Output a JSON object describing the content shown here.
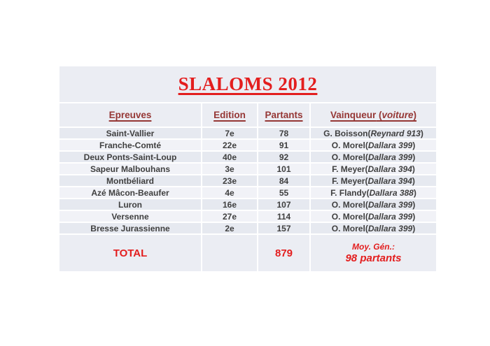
{
  "title": "SLALOMS 2012",
  "punctuation": {
    "open_paren": " (",
    "close_paren": ")"
  },
  "table": {
    "headers": {
      "epreuves": "Epreuves",
      "edition": "Edition",
      "partants": "Partants",
      "vainqueur": "Vainqueur",
      "vainqueur_italic": "voiture"
    },
    "rows": [
      {
        "epreuve": "Saint-Vallier",
        "edition": "7e",
        "partants": "78",
        "vainqueur": "G. Boisson",
        "voiture": "Reynard 913"
      },
      {
        "epreuve": "Franche-Comté",
        "edition": "22e",
        "partants": "91",
        "vainqueur": "O. Morel",
        "voiture": "Dallara 399"
      },
      {
        "epreuve": "Deux Ponts-Saint-Loup",
        "edition": "40e",
        "partants": "92",
        "vainqueur": "O. Morel",
        "voiture": "Dallara 399"
      },
      {
        "epreuve": "Sapeur Malbouhans",
        "edition": "3e",
        "partants": "101",
        "vainqueur": "F. Meyer",
        "voiture": "Dallara 394"
      },
      {
        "epreuve": "Montbéliard",
        "edition": "23e",
        "partants": "84",
        "vainqueur": "F. Meyer",
        "voiture": "Dallara 394"
      },
      {
        "epreuve": "Azé Mâcon-Beaufer",
        "edition": "4e",
        "partants": "55",
        "vainqueur": "F. Flandy",
        "voiture": "Dallara 388"
      },
      {
        "epreuve": "Luron",
        "edition": "16e",
        "partants": "107",
        "vainqueur": "O. Morel",
        "voiture": "Dallara 399"
      },
      {
        "epreuve": "Versenne",
        "edition": "27e",
        "partants": "114",
        "vainqueur": "O. Morel",
        "voiture": "Dallara 399"
      },
      {
        "epreuve": "Bresse Jurassienne",
        "edition": "2e",
        "partants": "157",
        "vainqueur": "O. Morel",
        "voiture": "Dallara 399"
      }
    ],
    "total": {
      "label": "TOTAL",
      "partants_total": "879",
      "moyenne_caption": "Moy. Gén.:",
      "moyenne_value": "98 partants"
    }
  },
  "colors": {
    "title_red": "#e31e1e",
    "header_maroon": "#953735",
    "data_text": "#3f3f3f",
    "band_dark": "#e6e9f0",
    "band_light": "#f1f2f7",
    "panel_bg": "#ebedf3"
  }
}
